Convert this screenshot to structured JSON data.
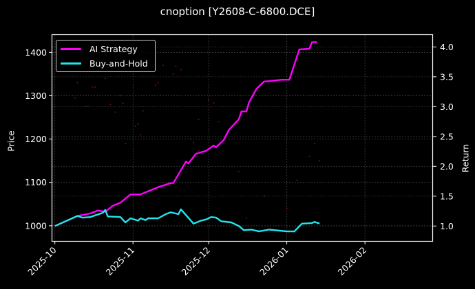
{
  "title": "cnoption [Y2608-C-6800.DCE]",
  "legend": {
    "items": [
      {
        "label": "AI Strategy",
        "color": "#ff00ff"
      },
      {
        "label": "Buy-and-Hold",
        "color": "#22e5ee"
      }
    ]
  },
  "axes": {
    "left_label": "Price",
    "right_label": "Return",
    "left_ticks": [
      "1000",
      "1100",
      "1200",
      "1300",
      "1400"
    ],
    "right_ticks": [
      "1.0",
      "1.5",
      "2.0",
      "2.5",
      "3.0",
      "3.5",
      "4.0"
    ],
    "x_ticks": [
      "2025-10",
      "2025-11",
      "2025-12",
      "2026-01",
      "2026-02"
    ]
  },
  "chart_data": {
    "type": "line",
    "title": "cnoption [Y2608-C-6800.DCE]",
    "xlabel": "",
    "ylabel": "Price",
    "y2label": "Return",
    "ylim": [
      965,
      1440
    ],
    "y2lim": [
      0.75,
      4.2
    ],
    "xlim": [
      "2025-09-30",
      "2026-02-28"
    ],
    "x_tick_labels": [
      "2025-10",
      "2025-11",
      "2025-12",
      "2026-01",
      "2026-02"
    ],
    "legend_position": "upper left",
    "grid": true,
    "series": [
      {
        "name": "AI Strategy",
        "axis": "right",
        "color": "#ff00ff",
        "x": [
          "2025-10-01",
          "2025-10-10",
          "2025-10-15",
          "2025-10-18",
          "2025-10-21",
          "2025-10-24",
          "2025-10-27",
          "2025-10-31",
          "2025-11-04",
          "2025-11-08",
          "2025-11-11",
          "2025-11-16",
          "2025-11-17",
          "2025-11-22",
          "2025-11-23",
          "2025-11-26",
          "2025-11-30",
          "2025-12-03",
          "2025-12-04",
          "2025-12-07",
          "2025-12-09",
          "2025-12-13",
          "2025-12-14",
          "2025-12-16",
          "2025-12-17",
          "2025-12-20",
          "2025-12-23",
          "2025-12-30",
          "2026-01-02",
          "2026-01-06",
          "2026-01-10",
          "2026-01-11",
          "2026-01-13"
        ],
        "values": [
          1.0,
          1.17,
          1.21,
          1.26,
          1.24,
          1.34,
          1.39,
          1.53,
          1.53,
          1.6,
          1.65,
          1.72,
          1.72,
          2.08,
          2.05,
          2.21,
          2.26,
          2.35,
          2.32,
          2.44,
          2.61,
          2.79,
          2.92,
          2.92,
          3.07,
          3.3,
          3.42,
          3.45,
          3.45,
          3.96,
          3.97,
          4.08,
          4.08
        ]
      },
      {
        "name": "Buy-and-Hold",
        "axis": "right",
        "color": "#22e5ee",
        "x": [
          "2025-10-01",
          "2025-10-10",
          "2025-10-12",
          "2025-10-15",
          "2025-10-20",
          "2025-10-21",
          "2025-10-22",
          "2025-10-27",
          "2025-10-29",
          "2025-10-31",
          "2025-11-03",
          "2025-11-04",
          "2025-11-06",
          "2025-11-07",
          "2025-11-11",
          "2025-11-14",
          "2025-11-16",
          "2025-11-19",
          "2025-11-20",
          "2025-11-25",
          "2025-11-28",
          "2025-11-30",
          "2025-12-02",
          "2025-12-04",
          "2025-12-06",
          "2025-12-10",
          "2025-12-13",
          "2025-12-15",
          "2025-12-18",
          "2025-12-21",
          "2025-12-25",
          "2026-01-01",
          "2026-01-04",
          "2026-01-07",
          "2026-01-11",
          "2026-01-12",
          "2026-01-14"
        ],
        "values": [
          1.0,
          1.17,
          1.14,
          1.15,
          1.22,
          1.27,
          1.16,
          1.15,
          1.06,
          1.13,
          1.09,
          1.13,
          1.1,
          1.13,
          1.13,
          1.2,
          1.23,
          1.2,
          1.28,
          1.04,
          1.09,
          1.11,
          1.15,
          1.14,
          1.08,
          1.06,
          1.0,
          0.93,
          0.94,
          0.91,
          0.94,
          0.91,
          0.91,
          1.04,
          1.05,
          1.07,
          1.04
        ]
      },
      {
        "name": "Price (scatter, faint)",
        "axis": "left",
        "type": "scatter",
        "color": "#5a1020",
        "x": [
          "2025-10-09",
          "2025-10-10",
          "2025-10-13",
          "2025-10-14",
          "2025-10-16",
          "2025-10-17",
          "2025-10-21",
          "2025-10-23",
          "2025-10-25",
          "2025-10-27",
          "2025-10-28",
          "2025-10-29",
          "2025-11-02",
          "2025-11-03",
          "2025-11-04",
          "2025-11-05",
          "2025-11-10",
          "2025-11-11",
          "2025-11-13",
          "2025-11-17",
          "2025-11-18",
          "2025-11-20",
          "2025-11-24",
          "2025-11-25",
          "2025-11-27",
          "2025-12-01",
          "2025-12-03",
          "2025-12-05",
          "2025-12-08",
          "2025-12-13",
          "2025-12-16",
          "2025-12-23",
          "2026-01-01",
          "2026-01-05",
          "2026-01-10",
          "2026-01-12",
          "2026-01-14"
        ],
        "values": [
          1295,
          1330,
          1275,
          1276,
          1320,
          1320,
          1340,
          1280,
          1262,
          1300,
          1283,
          1190,
          1230,
          1235,
          1210,
          1265,
          1325,
          1330,
          1370,
          1350,
          1368,
          1360,
          1200,
          1192,
          1245,
          1290,
          1283,
          1240,
          1210,
          1125,
          1018,
          1070,
          1040,
          1105,
          1160,
          1190,
          1150
        ]
      }
    ]
  }
}
